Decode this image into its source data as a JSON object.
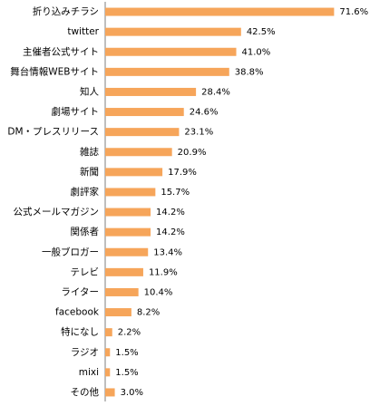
{
  "chart_data": {
    "type": "bar",
    "orientation": "horizontal",
    "categories": [
      "折り込みチラシ",
      "twitter",
      "主催者公式サイト",
      "舞台情報WEBサイト",
      "知人",
      "劇場サイト",
      "DM・プレスリリース",
      "雑誌",
      "新聞",
      "劇評家",
      "公式メールマガジン",
      "関係者",
      "一般ブロガー",
      "テレビ",
      "ライター",
      "facebook",
      "特になし",
      "ラジオ",
      "mixi",
      "その他"
    ],
    "values": [
      71.6,
      42.5,
      41.0,
      38.8,
      28.4,
      24.6,
      23.1,
      20.9,
      17.9,
      15.7,
      14.2,
      14.2,
      13.4,
      11.9,
      10.4,
      8.2,
      2.2,
      1.5,
      1.5,
      3.0
    ],
    "value_labels": [
      "71.6%",
      "42.5%",
      "41.0%",
      "38.8%",
      "28.4%",
      "24.6%",
      "23.1%",
      "20.9%",
      "17.9%",
      "15.7%",
      "14.2%",
      "14.2%",
      "13.4%",
      "11.9%",
      "10.4%",
      "8.2%",
      "2.2%",
      "1.5%",
      "1.5%",
      "3.0%"
    ],
    "bar_color": "#F6A55A",
    "axis_color": "#7f7f7f",
    "xlim": [
      0,
      80
    ],
    "grid": false,
    "legend": "none"
  }
}
